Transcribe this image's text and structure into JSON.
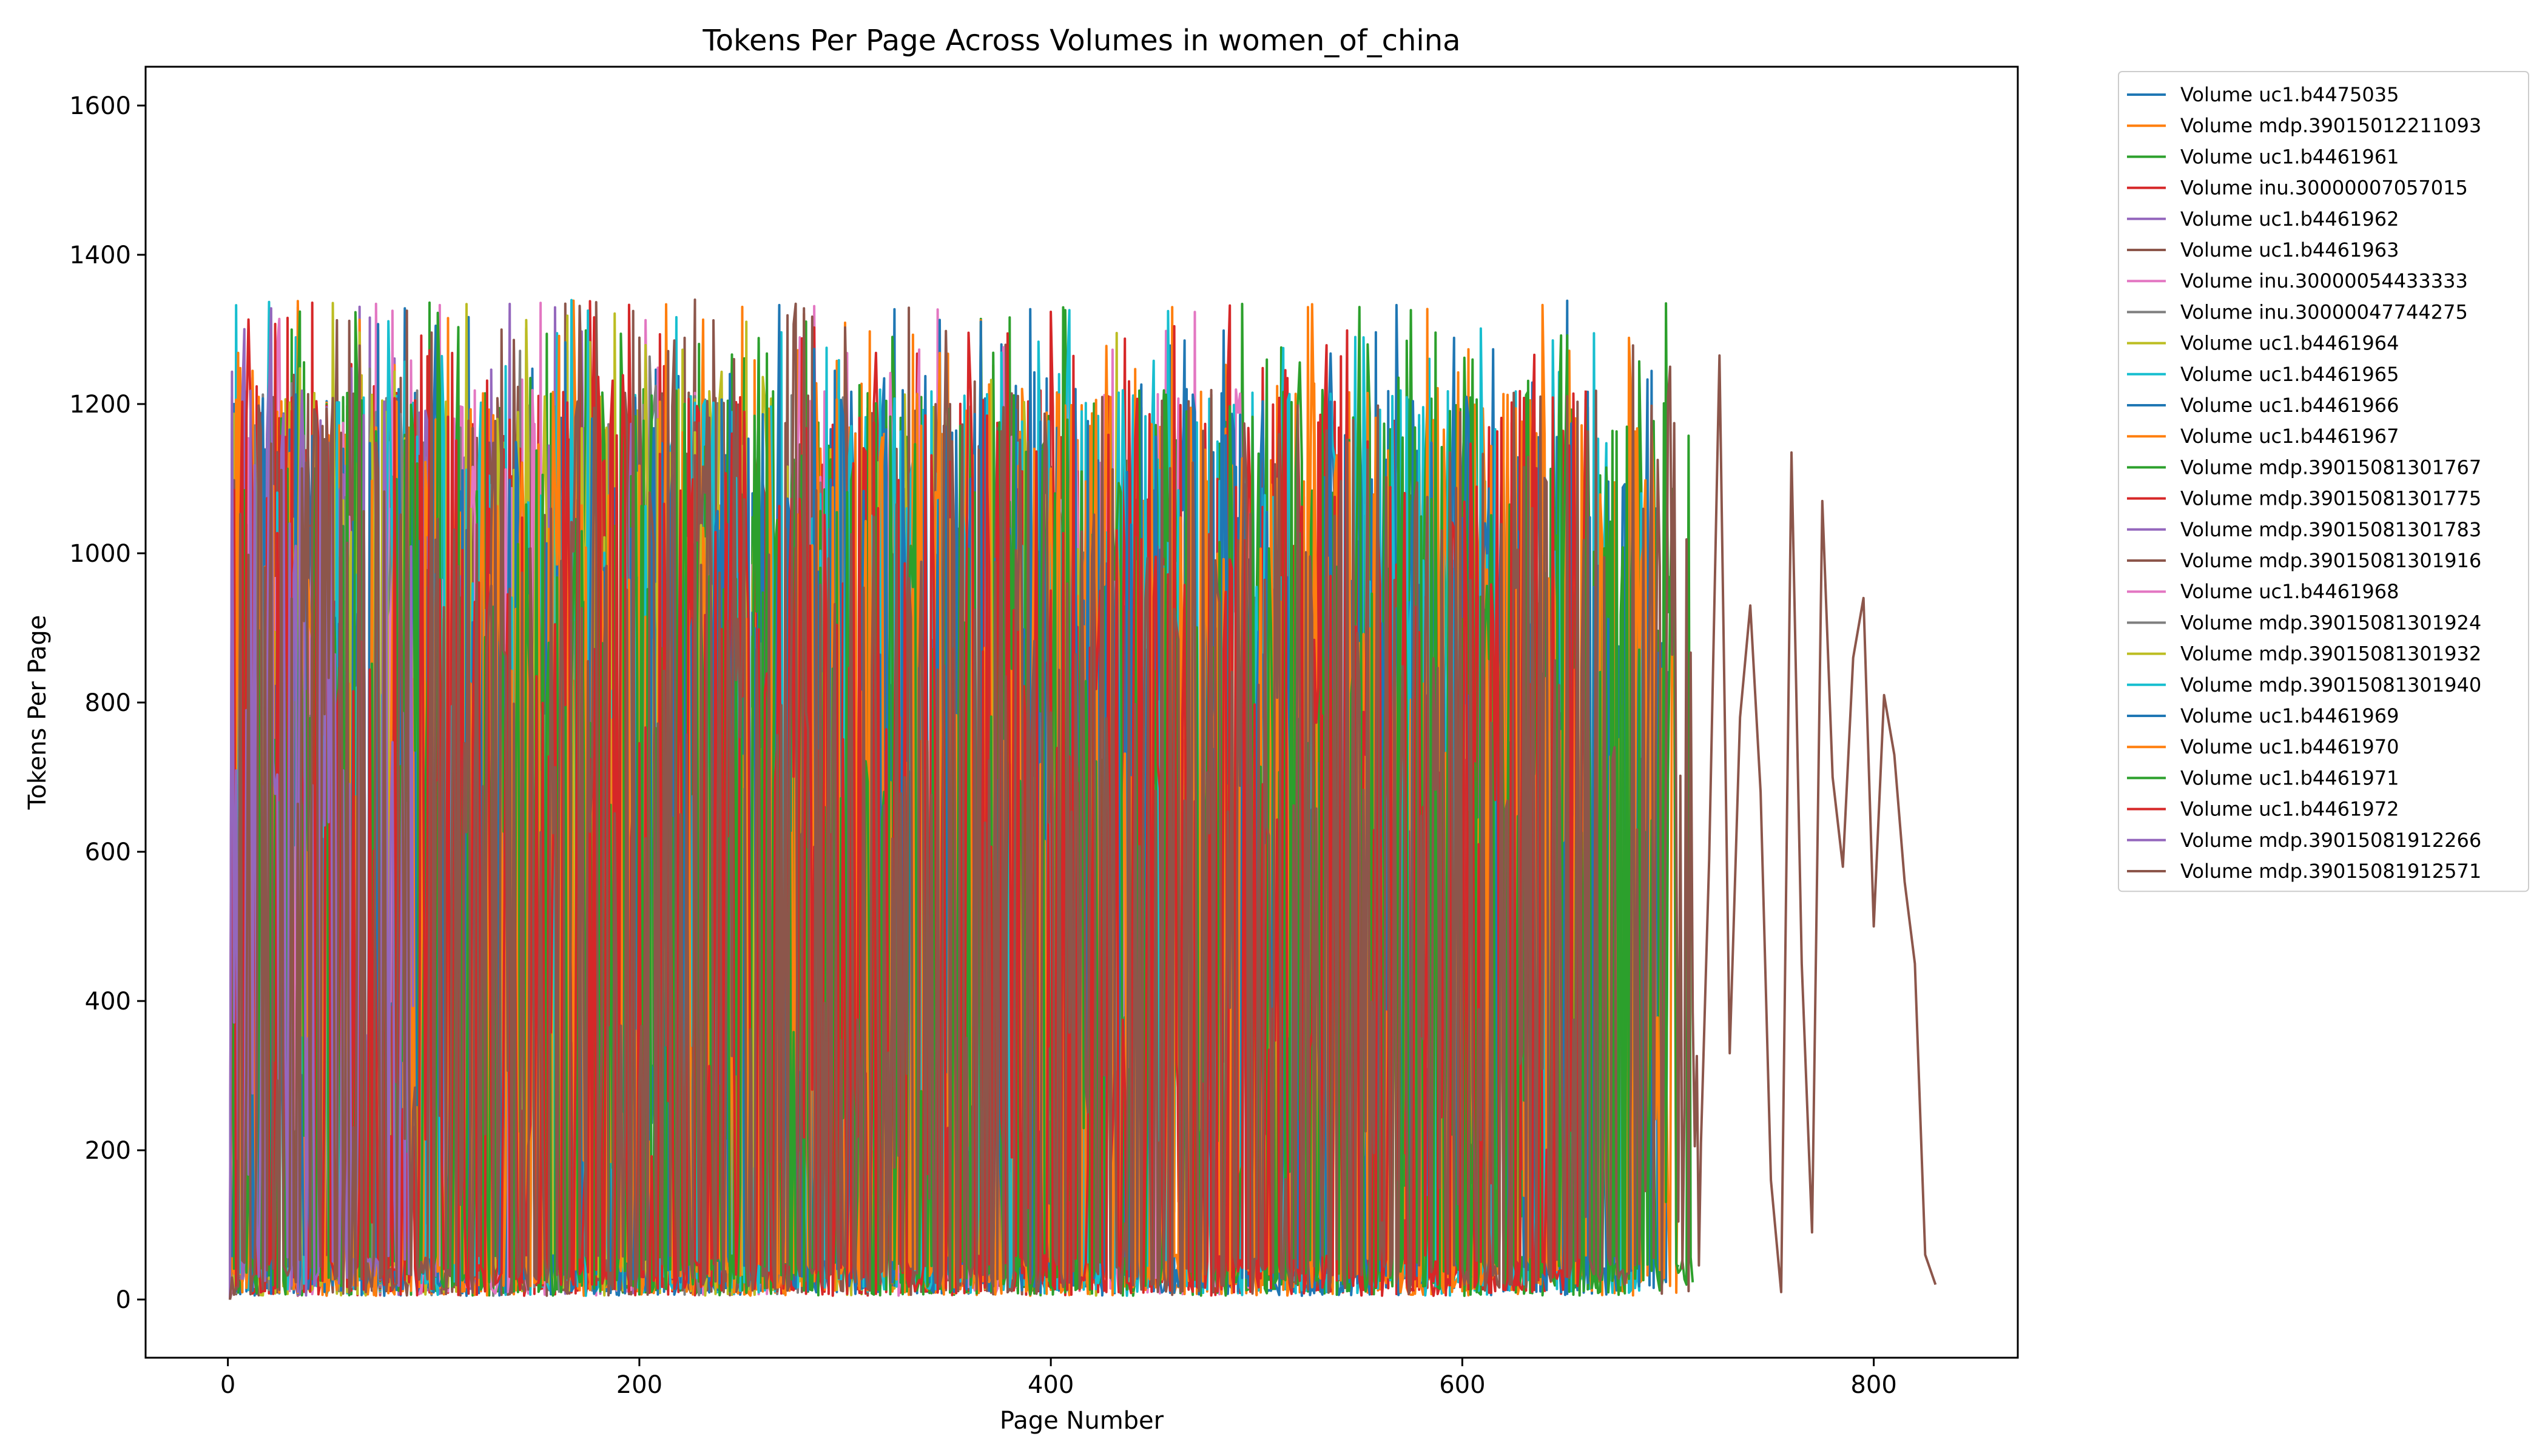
{
  "chart_data": {
    "type": "line",
    "title": "Tokens Per Page Across Volumes in women_of_china",
    "xlabel": "Page Number",
    "ylabel": "Tokens Per Page",
    "xlim": [
      -40,
      870
    ],
    "ylim": [
      -78,
      1652
    ],
    "xticks": [
      0,
      200,
      400,
      600,
      800
    ],
    "yticks": [
      0,
      200,
      400,
      600,
      800,
      1000,
      1200,
      1400,
      1600
    ],
    "legend_position": "outside-right-top",
    "grid": false,
    "series": [
      {
        "name": "Volume uc1.b4475035",
        "color": "#1f77b4",
        "pages": 700,
        "seed": 11
      },
      {
        "name": "Volume mdp.39015012211093",
        "color": "#ff7f0e",
        "pages": 690,
        "seed": 12
      },
      {
        "name": "Volume uc1.b4461961",
        "color": "#2ca02c",
        "pages": 705,
        "seed": 13
      },
      {
        "name": "Volume inu.30000007057015",
        "color": "#d62728",
        "pages": 655,
        "seed": 14
      },
      {
        "name": "Volume uc1.b4461962",
        "color": "#9467bd",
        "pages": 200,
        "seed": 15
      },
      {
        "name": "Volume uc1.b4461963",
        "color": "#8c564b",
        "pages": 410,
        "seed": 16
      },
      {
        "name": "Volume inu.30000054433333",
        "color": "#e377c2",
        "pages": 500,
        "seed": 17
      },
      {
        "name": "Volume inu.30000047744275",
        "color": "#7f7f7f",
        "pages": 300,
        "seed": 18
      },
      {
        "name": "Volume uc1.b4461964",
        "color": "#bcbd22",
        "pages": 440,
        "seed": 19
      },
      {
        "name": "Volume uc1.b4461965",
        "color": "#17becf",
        "pages": 690,
        "seed": 20
      },
      {
        "name": "Volume uc1.b4461966",
        "color": "#1f77b4",
        "pages": 695,
        "seed": 21
      },
      {
        "name": "Volume uc1.b4461967",
        "color": "#ff7f0e",
        "pages": 705,
        "seed": 22
      },
      {
        "name": "Volume mdp.39015081301767",
        "color": "#2ca02c",
        "pages": 712,
        "seed": 23
      },
      {
        "name": "Volume mdp.39015081301775",
        "color": "#d62728",
        "pages": 640,
        "seed": 24
      },
      {
        "name": "Volume mdp.39015081301783",
        "color": "#9467bd",
        "pages": 120,
        "seed": 25
      },
      {
        "name": "Volume mdp.39015081301916",
        "color": "#8c564b",
        "pages": 380,
        "seed": 26
      },
      {
        "name": "Volume uc1.b4461968",
        "color": "#e377c2",
        "pages": 150,
        "seed": 27
      },
      {
        "name": "Volume mdp.39015081301924",
        "color": "#7f7f7f",
        "pages": 100,
        "seed": 28
      },
      {
        "name": "Volume mdp.39015081301932",
        "color": "#bcbd22",
        "pages": 260,
        "seed": 29
      },
      {
        "name": "Volume mdp.39015081301940",
        "color": "#17becf",
        "pages": 640,
        "seed": 30
      },
      {
        "name": "Volume uc1.b4461969",
        "color": "#1f77b4",
        "pages": 665,
        "seed": 31
      },
      {
        "name": "Volume uc1.b4461970",
        "color": "#ff7f0e",
        "pages": 660,
        "seed": 32
      },
      {
        "name": "Volume uc1.b4461971",
        "color": "#2ca02c",
        "pages": 680,
        "seed": 33
      },
      {
        "name": "Volume uc1.b4461972",
        "color": "#d62728",
        "pages": 660,
        "seed": 34
      },
      {
        "name": "Volume mdp.39015081912266",
        "color": "#9467bd",
        "pages": 90,
        "seed": 35
      },
      {
        "name": "Volume mdp.39015081912571",
        "color": "#8c564b",
        "pages": 830,
        "seed": 36,
        "tail": {
          "x": [
            716,
            720,
            725,
            730,
            735,
            740,
            745,
            750,
            755,
            760,
            765,
            770,
            775,
            780,
            785,
            790,
            795,
            800,
            805,
            810,
            815,
            820,
            825,
            830
          ],
          "values": [
            210,
            590,
            1265,
            330,
            780,
            930,
            680,
            160,
            10,
            1135,
            450,
            90,
            1070,
            700,
            580,
            860,
            940,
            500,
            810,
            730,
            560,
            450,
            60,
            20
          ]
        }
      }
    ]
  }
}
